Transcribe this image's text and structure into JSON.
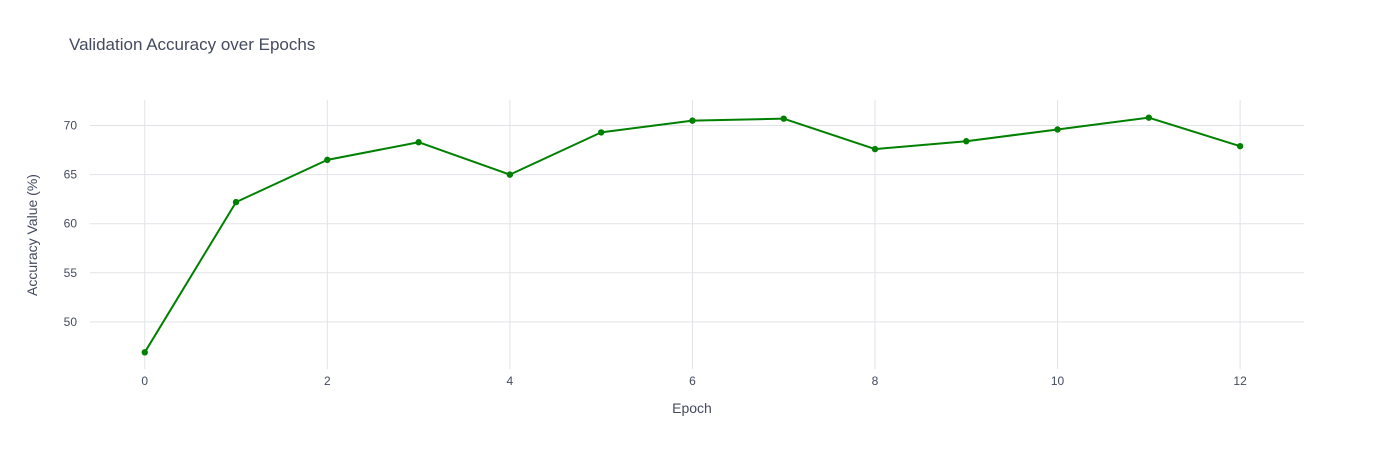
{
  "chart_data": {
    "type": "line",
    "title": "Validation Accuracy over Epochs",
    "xlabel": "Epoch",
    "ylabel": "Accuracy Value (%)",
    "x": [
      0,
      1,
      2,
      3,
      4,
      5,
      6,
      7,
      8,
      9,
      10,
      11,
      12
    ],
    "series": [
      {
        "values": [
          46.9,
          62.2,
          66.5,
          68.3,
          65.0,
          69.3,
          70.5,
          70.7,
          67.6,
          68.4,
          69.6,
          70.8,
          67.9
        ]
      }
    ],
    "xlim": [
      -0.6,
      12.7
    ],
    "ylim": [
      45.2,
      72.6
    ],
    "xticks": [
      0,
      2,
      4,
      6,
      8,
      10,
      12
    ],
    "yticks": [
      50,
      55,
      60,
      65,
      70
    ],
    "grid": true,
    "line_color": "#008000",
    "grid_color": "#e1e3e8",
    "legend": "none"
  }
}
